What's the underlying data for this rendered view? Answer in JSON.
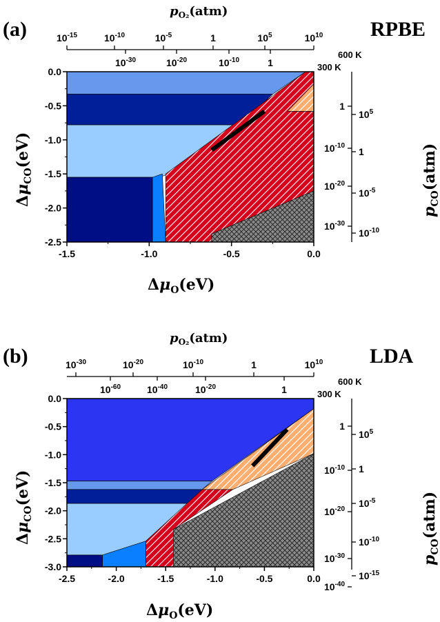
{
  "chart_data": [
    {
      "panel_label": "(a)",
      "method": "RPBE",
      "type": "area",
      "xlabel": "Δμ_O(eV)",
      "ylabel": "Δμ_CO(eV)",
      "xlim": [
        -1.5,
        0.0
      ],
      "ylim": [
        -2.5,
        0.0
      ],
      "x_ticks": [
        "-1.5",
        "-1.0",
        "-0.5",
        "0.0"
      ],
      "y_ticks": [
        "0.0",
        "-0.5",
        "-1.0",
        "-1.5",
        "-2.0",
        "-2.5"
      ],
      "top_axis_title": "p_O2 (atm)",
      "top_axis_600K": [
        "10^-15",
        "10^-10",
        "10^-5",
        "1",
        "10^5",
        "10^10"
      ],
      "top_axis_300K": [
        "10^-30",
        "10^-20",
        "10^-10",
        "1"
      ],
      "temp_labels": [
        "600 K",
        "300 K"
      ],
      "right_axis_title": "p_CO (atm)",
      "right_axis_300K": [
        "1",
        "10^-10",
        "10^-20",
        "10^-30"
      ],
      "right_axis_600K": [
        "10^5",
        "1",
        "10^-5",
        "10^-10"
      ],
      "regions": [
        {
          "name": "blue-top",
          "color": "#6699ee",
          "points": [
            [
              -1.5,
              0.0
            ],
            [
              -0.05,
              0.0
            ],
            [
              -0.25,
              -0.33
            ],
            [
              -1.5,
              -0.33
            ]
          ]
        },
        {
          "name": "navy-upper-band",
          "color": "#001f99",
          "points": [
            [
              -1.5,
              -0.33
            ],
            [
              -0.25,
              -0.33
            ],
            [
              -0.45,
              -0.78
            ],
            [
              -1.5,
              -0.78
            ]
          ]
        },
        {
          "name": "lightblue-mid",
          "color": "#99ccff",
          "points": [
            [
              -1.5,
              -0.78
            ],
            [
              -0.45,
              -0.78
            ],
            [
              -0.88,
              -1.5
            ],
            [
              -0.94,
              -1.55
            ],
            [
              -1.5,
              -1.55
            ]
          ]
        },
        {
          "name": "navy-bottom-left",
          "color": "#000e85",
          "points": [
            [
              -1.5,
              -1.55
            ],
            [
              -0.98,
              -1.55
            ],
            [
              -0.98,
              -2.5
            ],
            [
              -1.5,
              -2.5
            ]
          ]
        },
        {
          "name": "blue-strip",
          "color": "#0a7fff",
          "points": [
            [
              -0.98,
              -1.55
            ],
            [
              -0.92,
              -1.5
            ],
            [
              -0.9,
              -2.5
            ],
            [
              -0.98,
              -2.5
            ]
          ]
        },
        {
          "name": "red-hatched",
          "color": "#d6001c",
          "points": [
            [
              -0.9,
              -1.5
            ],
            [
              -0.05,
              0.0
            ],
            [
              0.0,
              0.0
            ],
            [
              0.0,
              -0.58
            ],
            [
              -0.16,
              -0.58
            ],
            [
              0.0,
              -0.58
            ],
            [
              0.0,
              -1.75
            ],
            [
              -0.62,
              -2.38
            ],
            [
              -0.62,
              -2.5
            ],
            [
              -0.9,
              -2.5
            ]
          ]
        },
        {
          "name": "orange-hatched",
          "color": "#ffbb88",
          "points": [
            [
              -0.16,
              -0.58
            ],
            [
              0.0,
              -0.18
            ],
            [
              0.0,
              -0.58
            ]
          ]
        },
        {
          "name": "gray-crosshatched",
          "color": "#777777",
          "points": [
            [
              -0.62,
              -2.38
            ],
            [
              0.0,
              -1.75
            ],
            [
              0.0,
              -2.5
            ],
            [
              -0.62,
              -2.5
            ]
          ]
        }
      ],
      "trajectory": [
        [
          -0.62,
          -1.15
        ],
        [
          -0.3,
          -0.58
        ]
      ]
    },
    {
      "panel_label": "(b)",
      "method": "LDA",
      "type": "area",
      "xlabel": "Δμ_O(eV)",
      "ylabel": "Δμ_CO(eV)",
      "xlim": [
        -2.5,
        0.0
      ],
      "ylim": [
        -3.0,
        0.0
      ],
      "x_ticks": [
        "-2.5",
        "-2.0",
        "-1.5",
        "-1.0",
        "-0.5",
        "0.0"
      ],
      "y_ticks": [
        "0.0",
        "-0.5",
        "-1.0",
        "-1.5",
        "-2.0",
        "-2.5",
        "-3.0"
      ],
      "top_axis_title": "p_O2 (atm)",
      "top_axis_600K": [
        "10^-30",
        "10^-20",
        "10^-10",
        "1",
        "10^10"
      ],
      "top_axis_300K": [
        "10^-60",
        "10^-40",
        "10^-20",
        "1"
      ],
      "temp_labels": [
        "600 K",
        "300 K"
      ],
      "right_axis_title": "p_CO (atm)",
      "right_axis_300K": [
        "1",
        "10^-10",
        "10^-20",
        "10^-30",
        "10^-40"
      ],
      "right_axis_600K": [
        "10^5",
        "1",
        "10^-5",
        "10^-10",
        "10^-15"
      ],
      "regions": [
        {
          "name": "blue-top",
          "color": "#2c36f2",
          "points": [
            [
              -2.5,
              0.0
            ],
            [
              0.0,
              0.0
            ],
            [
              0.0,
              -0.18
            ],
            [
              -1.03,
              -1.47
            ],
            [
              -2.5,
              -1.47
            ]
          ]
        },
        {
          "name": "lightblue-strip",
          "color": "#6699ee",
          "points": [
            [
              -2.5,
              -1.47
            ],
            [
              -1.03,
              -1.47
            ],
            [
              -1.13,
              -1.62
            ],
            [
              -2.5,
              -1.62
            ]
          ]
        },
        {
          "name": "navy-band",
          "color": "#001f99",
          "points": [
            [
              -2.5,
              -1.62
            ],
            [
              -1.13,
              -1.62
            ],
            [
              -1.28,
              -1.87
            ],
            [
              -2.5,
              -1.87
            ]
          ]
        },
        {
          "name": "lightblue-mid",
          "color": "#99ccff",
          "points": [
            [
              -2.5,
              -1.87
            ],
            [
              -1.28,
              -1.87
            ],
            [
              -1.7,
              -2.54
            ],
            [
              -2.14,
              -2.79
            ],
            [
              -2.5,
              -2.79
            ]
          ]
        },
        {
          "name": "navy-bottom-left",
          "color": "#000e85",
          "points": [
            [
              -2.5,
              -2.79
            ],
            [
              -2.14,
              -2.79
            ],
            [
              -2.14,
              -3.0
            ],
            [
              -2.5,
              -3.0
            ]
          ]
        },
        {
          "name": "blue-strip",
          "color": "#0a7fff",
          "points": [
            [
              -2.14,
              -2.79
            ],
            [
              -1.7,
              -2.54
            ],
            [
              -1.7,
              -3.0
            ],
            [
              -2.14,
              -3.0
            ]
          ]
        },
        {
          "name": "red-hatched",
          "color": "#d6001c",
          "points": [
            [
              -1.7,
              -2.54
            ],
            [
              -1.13,
              -1.62
            ],
            [
              -0.82,
              -1.62
            ],
            [
              -1.42,
              -2.33
            ],
            [
              -1.42,
              -3.0
            ],
            [
              -1.7,
              -3.0
            ]
          ]
        },
        {
          "name": "orange-hatched",
          "color": "#ffbb88",
          "points": [
            [
              -1.13,
              -1.62
            ],
            [
              0.0,
              -0.18
            ],
            [
              0.0,
              -0.98
            ],
            [
              -0.82,
              -1.62
            ]
          ]
        },
        {
          "name": "gray-crosshatched",
          "color": "#777777",
          "points": [
            [
              -1.42,
              -2.33
            ],
            [
              0.0,
              -0.98
            ],
            [
              0.0,
              -3.0
            ],
            [
              -1.42,
              -3.0
            ]
          ]
        }
      ],
      "trajectory": [
        [
          -0.62,
          -1.2
        ],
        [
          -0.27,
          -0.55
        ]
      ]
    }
  ]
}
